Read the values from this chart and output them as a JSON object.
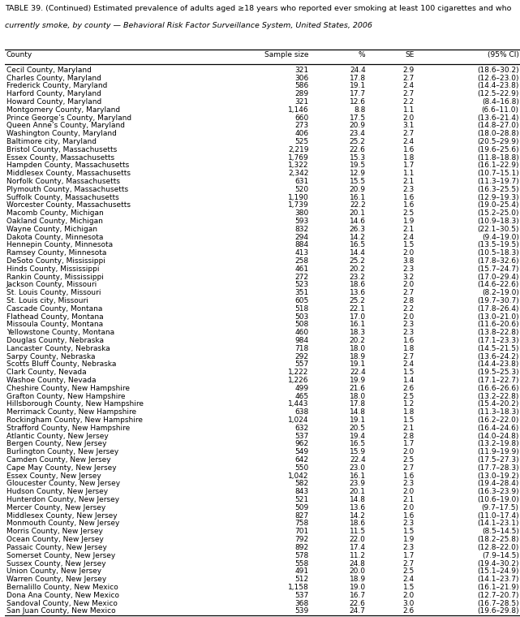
{
  "title_line1": "TABLE 39. (Continued) Estimated prevalence of adults aged ≥18 years who reported ever smoking at least 100 cigarettes and who",
  "title_line2": "currently smoke, by county — Behavioral Risk Factor Surveillance System, United States, 2006",
  "col_headers": [
    "County",
    "Sample size",
    "%",
    "SE",
    "(95% CI)"
  ],
  "rows": [
    [
      "Cecil County, Maryland",
      "321",
      "24.4",
      "2.9",
      "(18.6–30.2)"
    ],
    [
      "Charles County, Maryland",
      "306",
      "17.8",
      "2.7",
      "(12.6–23.0)"
    ],
    [
      "Frederick County, Maryland",
      "586",
      "19.1",
      "2.4",
      "(14.4–23.8)"
    ],
    [
      "Harford County, Maryland",
      "289",
      "17.7",
      "2.7",
      "(12.5–22.9)"
    ],
    [
      "Howard County, Maryland",
      "321",
      "12.6",
      "2.2",
      "(8.4–16.8)"
    ],
    [
      "Montgomery County, Maryland",
      "1,146",
      "8.8",
      "1.1",
      "(6.6–11.0)"
    ],
    [
      "Prince George’s County, Maryland",
      "660",
      "17.5",
      "2.0",
      "(13.6–21.4)"
    ],
    [
      "Queen Anne’s County, Maryland",
      "273",
      "20.9",
      "3.1",
      "(14.8–27.0)"
    ],
    [
      "Washington County, Maryland",
      "406",
      "23.4",
      "2.7",
      "(18.0–28.8)"
    ],
    [
      "Baltimore city, Maryland",
      "525",
      "25.2",
      "2.4",
      "(20.5–29.9)"
    ],
    [
      "Bristol County, Massachusetts",
      "2,219",
      "22.6",
      "1.6",
      "(19.6–25.6)"
    ],
    [
      "Essex County, Massachusetts",
      "1,769",
      "15.3",
      "1.8",
      "(11.8–18.8)"
    ],
    [
      "Hampden County, Massachusetts",
      "1,322",
      "19.5",
      "1.7",
      "(16.1–22.9)"
    ],
    [
      "Middlesex County, Massachusetts",
      "2,342",
      "12.9",
      "1.1",
      "(10.7–15.1)"
    ],
    [
      "Norfolk County, Massachusetts",
      "631",
      "15.5",
      "2.1",
      "(11.3–19.7)"
    ],
    [
      "Plymouth County, Massachusetts",
      "520",
      "20.9",
      "2.3",
      "(16.3–25.5)"
    ],
    [
      "Suffolk County, Massachusetts",
      "1,190",
      "16.1",
      "1.6",
      "(12.9–19.3)"
    ],
    [
      "Worcester County, Massachusetts",
      "1,739",
      "22.2",
      "1.6",
      "(19.0–25.4)"
    ],
    [
      "Macomb County, Michigan",
      "380",
      "20.1",
      "2.5",
      "(15.2–25.0)"
    ],
    [
      "Oakland County, Michigan",
      "593",
      "14.6",
      "1.9",
      "(10.9–18.3)"
    ],
    [
      "Wayne County, Michigan",
      "832",
      "26.3",
      "2.1",
      "(22.1–30.5)"
    ],
    [
      "Dakota County, Minnesota",
      "294",
      "14.2",
      "2.4",
      "(9.4–19.0)"
    ],
    [
      "Hennepin County, Minnesota",
      "884",
      "16.5",
      "1.5",
      "(13.5–19.5)"
    ],
    [
      "Ramsey County, Minnesota",
      "413",
      "14.4",
      "2.0",
      "(10.5–18.3)"
    ],
    [
      "DeSoto County, Mississippi",
      "258",
      "25.2",
      "3.8",
      "(17.8–32.6)"
    ],
    [
      "Hinds County, Mississippi",
      "461",
      "20.2",
      "2.3",
      "(15.7–24.7)"
    ],
    [
      "Rankin County, Mississippi",
      "272",
      "23.2",
      "3.2",
      "(17.0–29.4)"
    ],
    [
      "Jackson County, Missouri",
      "523",
      "18.6",
      "2.0",
      "(14.6–22.6)"
    ],
    [
      "St. Louis County, Missouri",
      "351",
      "13.6",
      "2.7",
      "(8.2–19.0)"
    ],
    [
      "St. Louis city, Missouri",
      "605",
      "25.2",
      "2.8",
      "(19.7–30.7)"
    ],
    [
      "Cascade County, Montana",
      "518",
      "22.1",
      "2.2",
      "(17.8–26.4)"
    ],
    [
      "Flathead County, Montana",
      "503",
      "17.0",
      "2.0",
      "(13.0–21.0)"
    ],
    [
      "Missoula County, Montana",
      "508",
      "16.1",
      "2.3",
      "(11.6–20.6)"
    ],
    [
      "Yellowstone County, Montana",
      "460",
      "18.3",
      "2.3",
      "(13.8–22.8)"
    ],
    [
      "Douglas County, Nebraska",
      "984",
      "20.2",
      "1.6",
      "(17.1–23.3)"
    ],
    [
      "Lancaster County, Nebraska",
      "718",
      "18.0",
      "1.8",
      "(14.5–21.5)"
    ],
    [
      "Sarpy County, Nebraska",
      "292",
      "18.9",
      "2.7",
      "(13.6–24.2)"
    ],
    [
      "Scotts Bluff County, Nebraska",
      "557",
      "19.1",
      "2.4",
      "(14.4–23.8)"
    ],
    [
      "Clark County, Nevada",
      "1,222",
      "22.4",
      "1.5",
      "(19.5–25.3)"
    ],
    [
      "Washoe County, Nevada",
      "1,226",
      "19.9",
      "1.4",
      "(17.1–22.7)"
    ],
    [
      "Cheshire County, New Hampshire",
      "499",
      "21.6",
      "2.6",
      "(16.6–26.6)"
    ],
    [
      "Grafton County, New Hampshire",
      "465",
      "18.0",
      "2.5",
      "(13.2–22.8)"
    ],
    [
      "Hillsborough County, New Hampshire",
      "1,443",
      "17.8",
      "1.2",
      "(15.4–20.2)"
    ],
    [
      "Merrimack County, New Hampshire",
      "638",
      "14.8",
      "1.8",
      "(11.3–18.3)"
    ],
    [
      "Rockingham County, New Hampshire",
      "1,024",
      "19.1",
      "1.5",
      "(16.2–22.0)"
    ],
    [
      "Strafford County, New Hampshire",
      "632",
      "20.5",
      "2.1",
      "(16.4–24.6)"
    ],
    [
      "Atlantic County, New Jersey",
      "537",
      "19.4",
      "2.8",
      "(14.0–24.8)"
    ],
    [
      "Bergen County, New Jersey",
      "962",
      "16.5",
      "1.7",
      "(13.2–19.8)"
    ],
    [
      "Burlington County, New Jersey",
      "549",
      "15.9",
      "2.0",
      "(11.9–19.9)"
    ],
    [
      "Camden County, New Jersey",
      "642",
      "22.4",
      "2.5",
      "(17.5–27.3)"
    ],
    [
      "Cape May County, New Jersey",
      "550",
      "23.0",
      "2.7",
      "(17.7–28.3)"
    ],
    [
      "Essex County, New Jersey",
      "1,042",
      "16.1",
      "1.6",
      "(13.0–19.2)"
    ],
    [
      "Gloucester County, New Jersey",
      "582",
      "23.9",
      "2.3",
      "(19.4–28.4)"
    ],
    [
      "Hudson County, New Jersey",
      "843",
      "20.1",
      "2.0",
      "(16.3–23.9)"
    ],
    [
      "Hunterdon County, New Jersey",
      "521",
      "14.8",
      "2.1",
      "(10.6–19.0)"
    ],
    [
      "Mercer County, New Jersey",
      "509",
      "13.6",
      "2.0",
      "(9.7–17.5)"
    ],
    [
      "Middlesex County, New Jersey",
      "827",
      "14.2",
      "1.6",
      "(11.0–17.4)"
    ],
    [
      "Monmouth County, New Jersey",
      "758",
      "18.6",
      "2.3",
      "(14.1–23.1)"
    ],
    [
      "Morris County, New Jersey",
      "701",
      "11.5",
      "1.5",
      "(8.5–14.5)"
    ],
    [
      "Ocean County, New Jersey",
      "792",
      "22.0",
      "1.9",
      "(18.2–25.8)"
    ],
    [
      "Passaic County, New Jersey",
      "892",
      "17.4",
      "2.3",
      "(12.8–22.0)"
    ],
    [
      "Somerset County, New Jersey",
      "578",
      "11.2",
      "1.7",
      "(7.9–14.5)"
    ],
    [
      "Sussex County, New Jersey",
      "558",
      "24.8",
      "2.7",
      "(19.4–30.2)"
    ],
    [
      "Union County, New Jersey",
      "491",
      "20.0",
      "2.5",
      "(15.1–24.9)"
    ],
    [
      "Warren County, New Jersey",
      "512",
      "18.9",
      "2.4",
      "(14.1–23.7)"
    ],
    [
      "Bernalillo County, New Mexico",
      "1,158",
      "19.0",
      "1.5",
      "(16.1–21.9)"
    ],
    [
      "Dona Ana County, New Mexico",
      "537",
      "16.7",
      "2.0",
      "(12.7–20.7)"
    ],
    [
      "Sandoval County, New Mexico",
      "368",
      "22.6",
      "3.0",
      "(16.7–28.5)"
    ],
    [
      "San Juan County, New Mexico",
      "539",
      "24.7",
      "2.6",
      "(19.6–29.8)"
    ]
  ],
  "bg_color": "#ffffff",
  "font_size": 6.5,
  "title_font_size": 6.8
}
